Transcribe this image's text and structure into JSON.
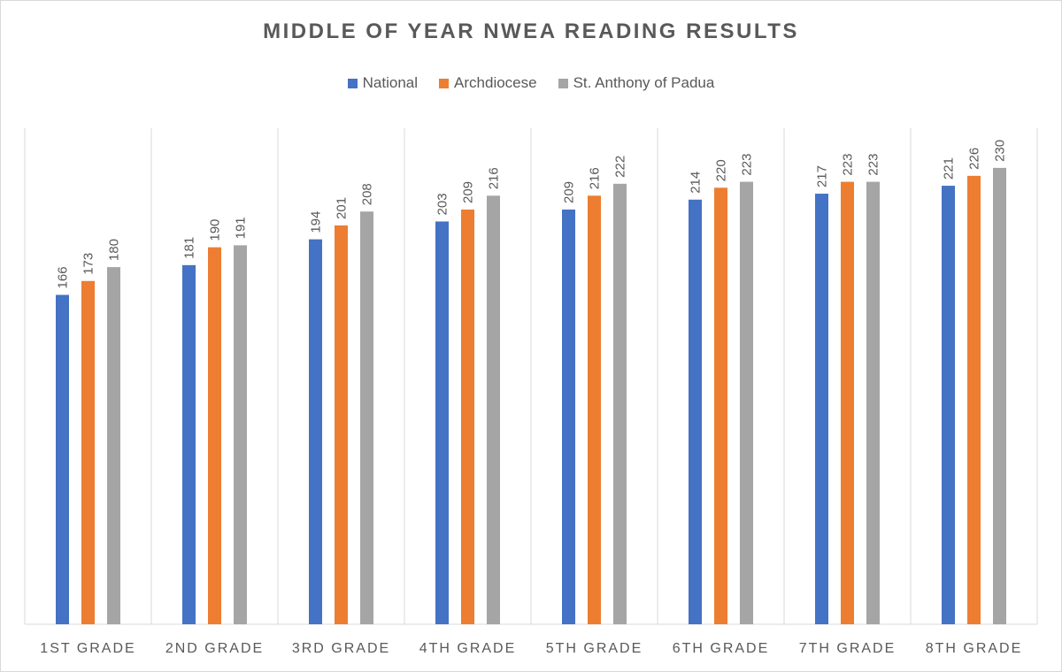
{
  "chart_data": {
    "type": "bar",
    "title": "MIDDLE OF YEAR NWEA READING RESULTS",
    "categories": [
      "1ST GRADE",
      "2ND GRADE",
      "3RD GRADE",
      "4TH GRADE",
      "5TH GRADE",
      "6TH GRADE",
      "7TH GRADE",
      "8TH GRADE"
    ],
    "series": [
      {
        "name": "National",
        "color": "#4472c4",
        "values": [
          166,
          181,
          194,
          203,
          209,
          214,
          217,
          221
        ]
      },
      {
        "name": "Archdiocese",
        "color": "#ed7d31",
        "values": [
          173,
          190,
          201,
          209,
          216,
          220,
          223,
          226
        ]
      },
      {
        "name": "St. Anthony of Padua",
        "color": "#a5a5a5",
        "values": [
          180,
          191,
          208,
          216,
          222,
          223,
          223,
          230
        ]
      }
    ],
    "xlabel": "",
    "ylabel": "",
    "ylim": [
      0,
      250
    ],
    "grid": "vertical category separators",
    "legend_position": "top-center",
    "data_labels": "rotated, above bars"
  }
}
